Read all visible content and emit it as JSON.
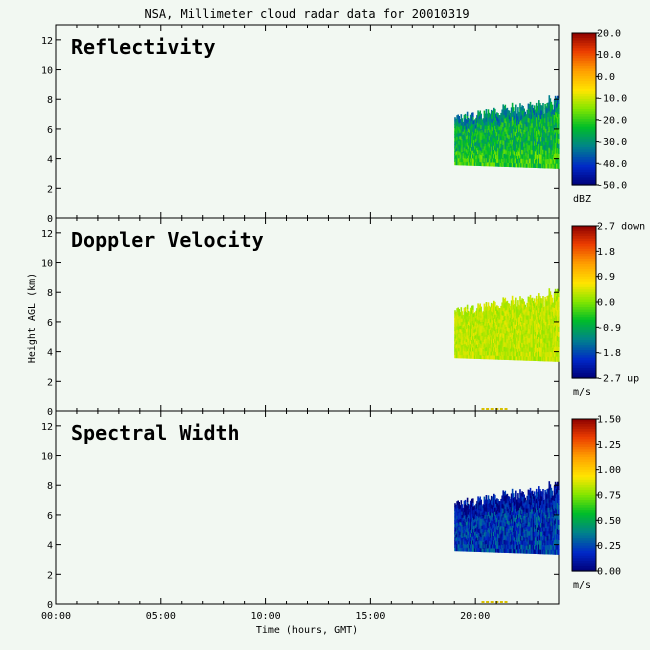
{
  "title": "NSA, Millimeter cloud radar data for 20010319",
  "y_axis_label": "Height AGL (km)",
  "x_axis_label": "Time (hours, GMT)",
  "x_ticks": [
    "00:00",
    "05:00",
    "10:00",
    "15:00",
    "20:00"
  ],
  "y_ticks": [
    "0",
    "2",
    "4",
    "6",
    "8",
    "10",
    "12"
  ],
  "chart_data": [
    {
      "type": "heatmap",
      "title": "Reflectivity",
      "xlabel": "Time (hours, GMT)",
      "ylabel": "Height AGL (km)",
      "xlim": [
        0,
        24
      ],
      "ylim": [
        0,
        13
      ],
      "x_ticks": [
        0,
        5,
        10,
        15,
        20
      ],
      "y_ticks": [
        0,
        2,
        4,
        6,
        8,
        10,
        12
      ],
      "colorbar": {
        "ticks": [
          "20.0",
          "10.0",
          "0.0",
          "-10.0",
          "-20.0",
          "-30.0",
          "-40.0",
          "-50.0"
        ],
        "range": [
          -50,
          20
        ],
        "unit": "dBZ"
      },
      "echo": {
        "time_range": [
          19.0,
          24.0
        ],
        "base_km": 3.6,
        "top_km_range": [
          6.2,
          8.2
        ],
        "dominant_value": -25
      }
    },
    {
      "type": "heatmap",
      "title": "Doppler Velocity",
      "xlabel": "Time (hours, GMT)",
      "ylabel": "Height AGL (km)",
      "xlim": [
        0,
        24
      ],
      "ylim": [
        0,
        13
      ],
      "x_ticks": [
        0,
        5,
        10,
        15,
        20
      ],
      "y_ticks": [
        0,
        2,
        4,
        6,
        8,
        10,
        12
      ],
      "colorbar": {
        "ticks": [
          "2.7 down",
          "1.8",
          "0.9",
          "0.0",
          "-0.9",
          "-1.8",
          "-2.7 up"
        ],
        "range": [
          -2.7,
          2.7
        ],
        "unit": "m/s"
      },
      "echo": {
        "time_range": [
          19.0,
          24.0
        ],
        "base_km": 3.6,
        "top_km_range": [
          6.2,
          8.2
        ],
        "dominant_value": 0.3
      }
    },
    {
      "type": "heatmap",
      "title": "Spectral Width",
      "xlabel": "Time (hours, GMT)",
      "ylabel": "Height AGL (km)",
      "xlim": [
        0,
        24
      ],
      "ylim": [
        0,
        13
      ],
      "x_ticks": [
        0,
        5,
        10,
        15,
        20
      ],
      "y_ticks": [
        0,
        2,
        4,
        6,
        8,
        10,
        12
      ],
      "colorbar": {
        "ticks": [
          "1.50",
          "1.25",
          "1.00",
          "0.75",
          "0.50",
          "0.25",
          "0.00"
        ],
        "range": [
          0,
          1.5
        ],
        "unit": "m/s"
      },
      "echo": {
        "time_range": [
          19.0,
          24.0
        ],
        "base_km": 3.6,
        "top_km_range": [
          6.2,
          8.2
        ],
        "dominant_value": 0.2
      }
    }
  ]
}
